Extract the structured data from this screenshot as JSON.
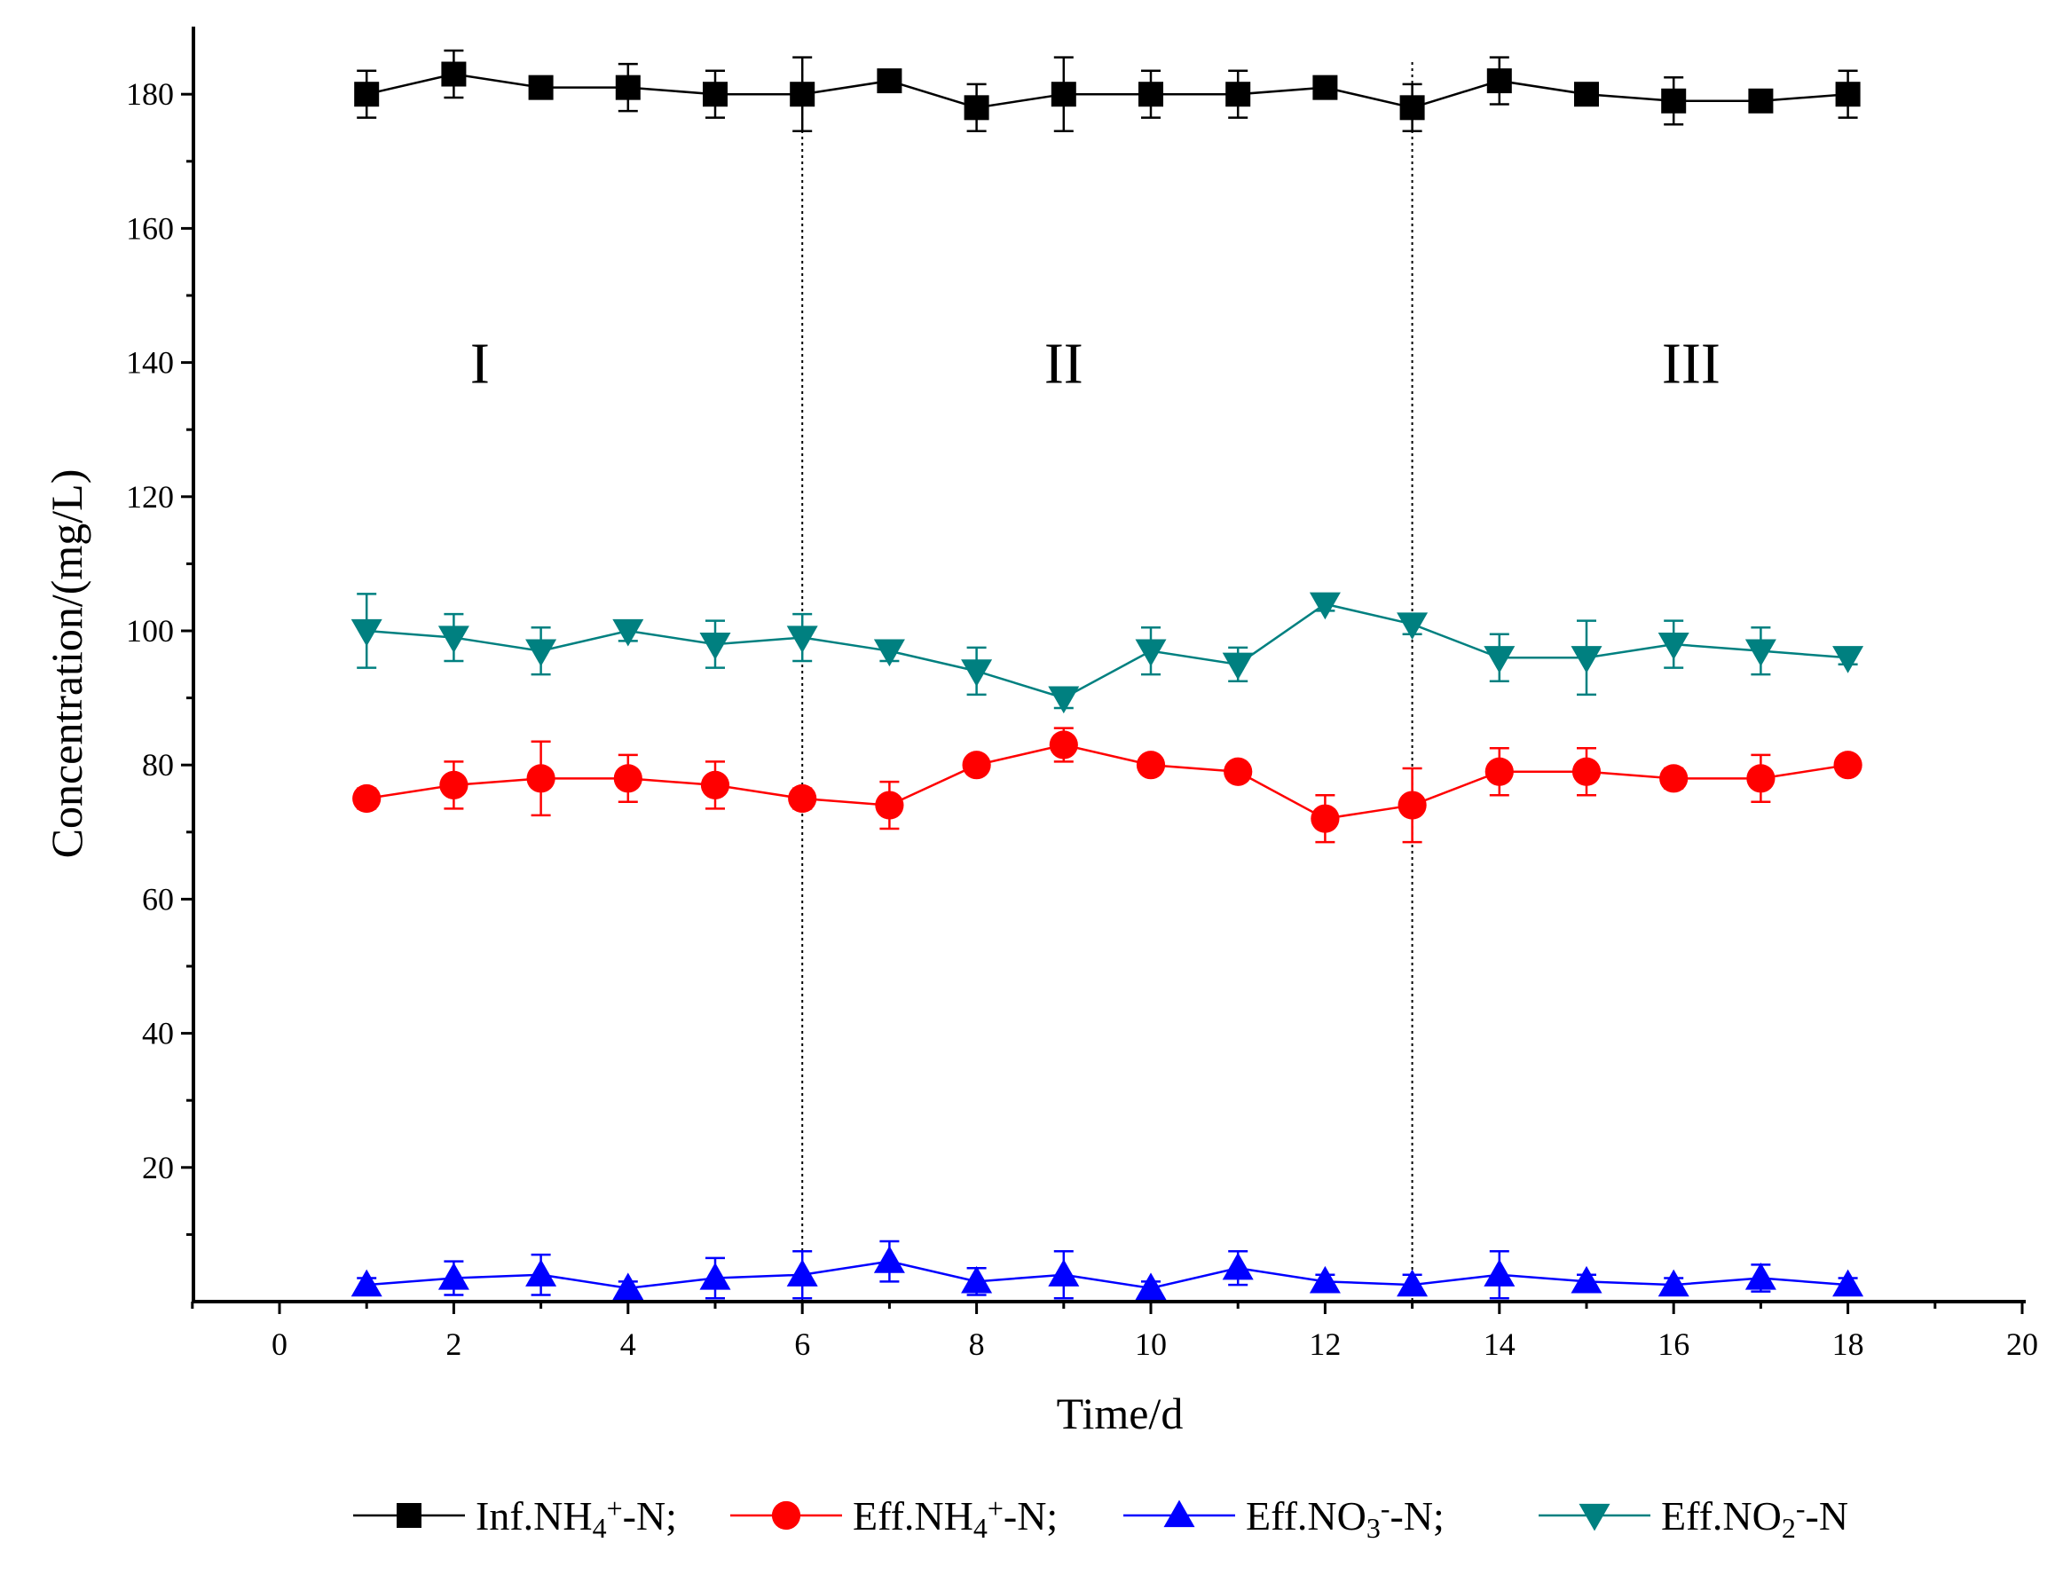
{
  "chart_data": {
    "type": "line",
    "title": "",
    "xlabel": "Time/d",
    "ylabel": "Concentration/(mg/L)",
    "xlim": [
      -1,
      20
    ],
    "ylim": [
      0,
      190
    ],
    "x_ticks": [
      0,
      2,
      4,
      6,
      8,
      10,
      12,
      14,
      16,
      18,
      20
    ],
    "x_tick_labels": [
      "0",
      "2",
      "4",
      "6",
      "8",
      "10",
      "12",
      "14",
      "16",
      "18",
      "20"
    ],
    "y_ticks": [
      20,
      40,
      60,
      80,
      100,
      120,
      140,
      160,
      180
    ],
    "y_tick_labels": [
      "20",
      "40",
      "60",
      "80",
      "100",
      "120",
      "140",
      "160",
      "180"
    ],
    "grid": false,
    "legend_position": "bottom",
    "phase_dividers": [
      6,
      13
    ],
    "phases": [
      {
        "label": "I",
        "x": 2.3,
        "y": 137
      },
      {
        "label": "II",
        "x": 9,
        "y": 137
      },
      {
        "label": "III",
        "x": 16.2,
        "y": 137
      }
    ],
    "x": [
      1,
      2,
      3,
      4,
      5,
      6,
      7,
      8,
      9,
      10,
      11,
      12,
      13,
      14,
      15,
      16,
      17,
      18
    ],
    "series": [
      {
        "name": "Inf.NH4+-N",
        "legend": {
          "prefix": "Inf.NH",
          "sub": "4",
          "sup": "+",
          "suffix": "-N;"
        },
        "color": "#000000",
        "marker": "square",
        "values": [
          180,
          183,
          181,
          181,
          180,
          180,
          182,
          178,
          180,
          180,
          180,
          181,
          178,
          182,
          180,
          179,
          179,
          180
        ],
        "errors": [
          3.5,
          3.5,
          1.0,
          3.5,
          3.5,
          5.5,
          1.5,
          3.5,
          5.5,
          3.5,
          3.5,
          1.5,
          3.5,
          3.5,
          1.0,
          3.5,
          1.0,
          3.5
        ]
      },
      {
        "name": "Eff.NH4+-N",
        "legend": {
          "prefix": "Eff.NH",
          "sub": "4",
          "sup": "+",
          "suffix": "-N;"
        },
        "color": "#ff0000",
        "marker": "circle",
        "values": [
          75,
          77,
          78,
          78,
          77,
          75,
          74,
          80,
          83,
          80,
          79,
          72,
          74,
          79,
          79,
          78,
          78,
          80
        ],
        "errors": [
          1.5,
          3.5,
          5.5,
          3.5,
          3.5,
          1.5,
          3.5,
          1.0,
          2.5,
          1.0,
          1.0,
          3.5,
          5.5,
          3.5,
          3.5,
          1.5,
          3.5,
          1.0
        ]
      },
      {
        "name": "Eff.NO3--N",
        "legend": {
          "prefix": "Eff.NO",
          "sub": "3",
          "sup": "-",
          "suffix": "-N;"
        },
        "color": "#0000ff",
        "marker": "triangle-up",
        "values": [
          2.5,
          3.5,
          4,
          2,
          3.5,
          4,
          6,
          3,
          4,
          2,
          5,
          3,
          2.5,
          4,
          3,
          2.5,
          3.5,
          2.5
        ],
        "errors": [
          1.0,
          2.5,
          3.0,
          1.0,
          3.0,
          3.5,
          3.0,
          2.0,
          3.5,
          1.0,
          2.5,
          1.0,
          1.5,
          3.5,
          1.0,
          1.0,
          2.0,
          1.0
        ]
      },
      {
        "name": "Eff.NO2--N",
        "legend": {
          "prefix": "Eff.NO",
          "sub": "2",
          "sup": "-",
          "suffix": "-N"
        },
        "color": "#008080",
        "marker": "triangle-down",
        "values": [
          100,
          99,
          97,
          100,
          98,
          99,
          97,
          94,
          90,
          97,
          95,
          104,
          101,
          96,
          96,
          98,
          97,
          96
        ],
        "errors": [
          5.5,
          3.5,
          3.5,
          1.5,
          3.5,
          3.5,
          1.5,
          3.5,
          1.5,
          3.5,
          2.5,
          1.0,
          1.5,
          3.5,
          5.5,
          3.5,
          3.5,
          1.0
        ]
      }
    ]
  }
}
